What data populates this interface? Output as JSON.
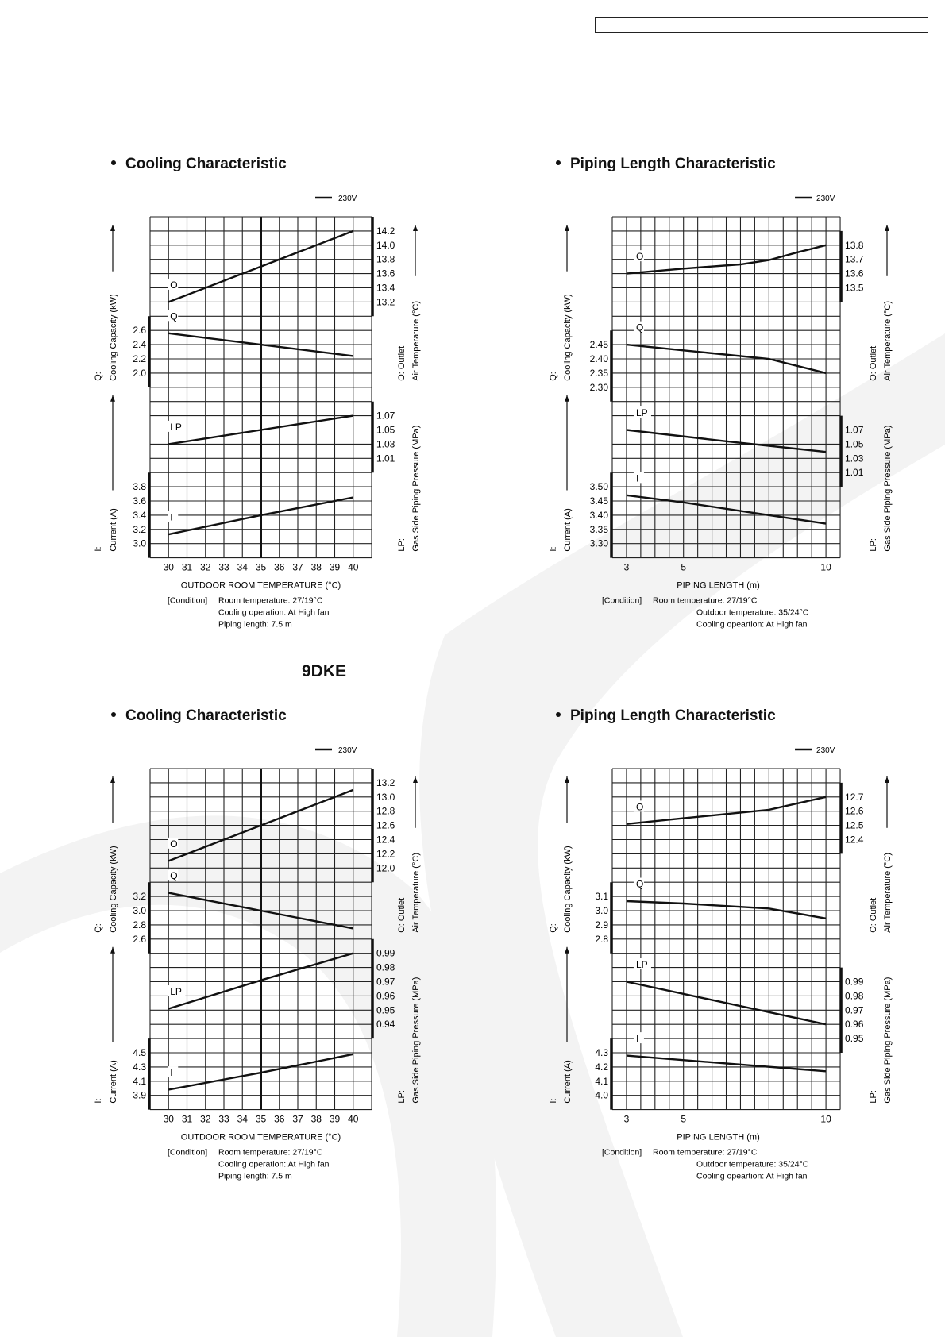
{
  "sections": [
    {
      "title": "Cooling Characteristic"
    },
    {
      "title": "Piping Length Characteristic"
    },
    {
      "title": "Cooling Characteristic"
    },
    {
      "title": "Piping Length Characteristic"
    }
  ],
  "model_label": "9DKE",
  "colors": {
    "ink": "#111111",
    "grid": "#222222",
    "watermark": "#f1f1f1"
  },
  "chart_data": [
    {
      "type": "line",
      "title": "Cooling Characteristic",
      "legend": "230V",
      "legend_position": "top-right",
      "xlabel": "OUTDOOR  ROOM TEMPERATURE (°C)",
      "xlim": [
        29,
        41
      ],
      "xticks": [
        "30",
        "31",
        "32",
        "33",
        "34",
        "35",
        "36",
        "37",
        "38",
        "39",
        "40"
      ],
      "marker_x": 35,
      "grid": true,
      "axis_titles": {
        "left_top": [
          "Q:",
          "Cooling Capacity (kW)"
        ],
        "left_bottom": [
          "I:",
          "Current (A)"
        ],
        "right_top": [
          "O: Outlet",
          "Air Temperature (°C)"
        ],
        "right_bottom": [
          "LP:",
          "Gas Side Piping Pressure (MPa)"
        ]
      },
      "series": [
        {
          "name": "O",
          "axis": "right",
          "ylim": [
            9.6,
            14.4
          ],
          "ticks": [
            "14.2",
            "14.0",
            "13.8",
            "13.6",
            "13.4",
            "13.2"
          ],
          "x": [
            30,
            35,
            40
          ],
          "y": [
            13.2,
            13.7,
            14.2
          ]
        },
        {
          "name": "Q",
          "axis": "left",
          "ylim": [
            -0.6,
            4.2
          ],
          "ticks": [
            "2.6",
            "2.4",
            "2.2",
            "2.0"
          ],
          "x": [
            30,
            35,
            40
          ],
          "y": [
            2.56,
            2.4,
            2.24
          ]
        },
        {
          "name": "LP",
          "axis": "right",
          "ylim": [
            0.87,
            1.35
          ],
          "ticks": [
            "1.07",
            "1.05",
            "1.03",
            "1.01"
          ],
          "x": [
            30,
            35,
            40
          ],
          "y": [
            1.03,
            1.05,
            1.07
          ]
        },
        {
          "name": "I",
          "axis": "left",
          "ylim": [
            2.8,
            7.6
          ],
          "ticks": [
            "3.8",
            "3.6",
            "3.4",
            "3.2",
            "3.0"
          ],
          "x": [
            30,
            35,
            40
          ],
          "y": [
            3.13,
            3.4,
            3.65
          ]
        }
      ],
      "condition_label": "[Condition]",
      "conditions": [
        "Room temperature: 27/19°C",
        "Cooling operation: At High fan",
        "Piping length:  7.5 m"
      ]
    },
    {
      "type": "line",
      "title": "Piping Length Characteristic",
      "legend": "230V",
      "legend_position": "top-right",
      "xlabel": "PIPING LENGTH (m)",
      "xlim": [
        2.5,
        10.5
      ],
      "xticks": [
        "3",
        "5",
        "10"
      ],
      "grid": true,
      "axis_titles": {
        "left_top": [
          "Q:",
          "Cooling Capacity (kW)"
        ],
        "left_bottom": [
          "I:",
          "Current (A)"
        ],
        "right_top": [
          "O: Outlet",
          "Air Temperature (°C)"
        ],
        "right_bottom": [
          "LP:",
          "Gas Side Piping Pressure (MPa)"
        ]
      },
      "series": [
        {
          "name": "O",
          "axis": "right",
          "ylim": [
            11.6,
            14.0
          ],
          "ticks": [
            "13.8",
            "13.7",
            "13.6",
            "13.5"
          ],
          "x": [
            3,
            5,
            7,
            8,
            9,
            10
          ],
          "y": [
            13.6,
            13.635,
            13.665,
            13.695,
            13.75,
            13.8
          ]
        },
        {
          "name": "Q",
          "axis": "left",
          "ylim": [
            1.7,
            2.9
          ],
          "ticks": [
            "2.45",
            "2.40",
            "2.35",
            "2.30"
          ],
          "x": [
            3,
            5,
            8,
            9,
            10
          ],
          "y": [
            2.45,
            2.43,
            2.4,
            2.375,
            2.35
          ]
        },
        {
          "name": "LP",
          "axis": "right",
          "ylim": [
            0.89,
            1.37
          ],
          "ticks": [
            "1.07",
            "1.05",
            "1.03",
            "1.01"
          ],
          "x": [
            3,
            6.5,
            10
          ],
          "y": [
            1.07,
            1.054,
            1.039
          ]
        },
        {
          "name": "I",
          "axis": "left",
          "ylim": [
            3.25,
            4.45
          ],
          "ticks": [
            "3.50",
            "3.45",
            "3.40",
            "3.35",
            "3.30"
          ],
          "x": [
            3,
            5,
            10
          ],
          "y": [
            3.47,
            3.445,
            3.37
          ]
        }
      ],
      "condition_label": "[Condition]",
      "conditions": [
        "Room temperature: 27/19°C",
        "Outdoor temperature: 35/24°C",
        "Cooling opeartion: At High fan"
      ]
    },
    {
      "type": "line",
      "title": "Cooling Characteristic",
      "legend": "230V",
      "legend_position": "top-right",
      "xlabel": "OUTDOOR  ROOM TEMPERATURE (°C)",
      "xlim": [
        29,
        41
      ],
      "xticks": [
        "30",
        "31",
        "32",
        "33",
        "34",
        "35",
        "36",
        "37",
        "38",
        "39",
        "40"
      ],
      "marker_x": 35,
      "grid": true,
      "axis_titles": {
        "left_top": [
          "Q:",
          "Cooling Capacity (kW)"
        ],
        "left_bottom": [
          "I:",
          "Current (A)"
        ],
        "right_top": [
          "O: Outlet",
          "Air Temperature (°C)"
        ],
        "right_bottom": [
          "LP:",
          "Gas Side Piping Pressure (MPa)"
        ]
      },
      "series": [
        {
          "name": "O",
          "axis": "right",
          "ylim": [
            8.6,
            13.4
          ],
          "ticks": [
            "13.2",
            "13.0",
            "12.8",
            "12.6",
            "12.4",
            "12.2",
            "12.0"
          ],
          "x": [
            30,
            35,
            40
          ],
          "y": [
            12.1,
            12.6,
            13.1
          ]
        },
        {
          "name": "Q",
          "axis": "left",
          "ylim": [
            0.2,
            5.0
          ],
          "ticks": [
            "3.2",
            "3.0",
            "2.8",
            "2.6"
          ],
          "x": [
            30,
            35,
            40
          ],
          "y": [
            3.25,
            3.0,
            2.75
          ]
        },
        {
          "name": "LP",
          "axis": "right",
          "ylim": [
            0.88,
            1.12
          ],
          "ticks": [
            "0.99",
            "0.98",
            "0.97",
            "0.96",
            "0.95",
            "0.94"
          ],
          "x": [
            30,
            35,
            40
          ],
          "y": [
            0.951,
            0.971,
            0.99
          ]
        },
        {
          "name": "I",
          "axis": "left",
          "ylim": [
            3.7,
            8.5
          ],
          "ticks": [
            "4.5",
            "4.3",
            "4.1",
            "3.9"
          ],
          "x": [
            30,
            35,
            40
          ],
          "y": [
            3.98,
            4.22,
            4.48
          ]
        }
      ],
      "condition_label": "[Condition]",
      "conditions": [
        "Room temperature: 27/19°C",
        "Cooling operation: At High fan",
        "Piping length:  7.5 m"
      ]
    },
    {
      "type": "line",
      "title": "Piping Length Characteristic",
      "legend": "230V",
      "legend_position": "top-right",
      "xlabel": "PIPING LENGTH (m)",
      "xlim": [
        2.5,
        10.5
      ],
      "xticks": [
        "3",
        "5",
        "10"
      ],
      "grid": true,
      "axis_titles": {
        "left_top": [
          "Q:",
          "Cooling Capacity (kW)"
        ],
        "left_bottom": [
          "I:",
          "Current (A)"
        ],
        "right_top": [
          "O: Outlet",
          "Air Temperature (°C)"
        ],
        "right_bottom": [
          "LP:",
          "Gas Side Piping Pressure (MPa)"
        ]
      },
      "series": [
        {
          "name": "O",
          "axis": "right",
          "ylim": [
            10.5,
            12.9
          ],
          "ticks": [
            "12.7",
            "12.6",
            "12.5",
            "12.4"
          ],
          "x": [
            3,
            5,
            8,
            10
          ],
          "y": [
            12.51,
            12.55,
            12.61,
            12.7
          ]
        },
        {
          "name": "Q",
          "axis": "left",
          "ylim": [
            1.6,
            4.0
          ],
          "ticks": [
            "3.1",
            "3.0",
            "2.9",
            "2.8"
          ],
          "x": [
            3,
            5,
            8,
            10
          ],
          "y": [
            3.067,
            3.05,
            3.015,
            2.945
          ]
        },
        {
          "name": "LP",
          "axis": "right",
          "ylim": [
            0.9,
            1.14
          ],
          "ticks": [
            "0.99",
            "0.98",
            "0.97",
            "0.96",
            "0.95"
          ],
          "x": [
            3,
            10
          ],
          "y": [
            0.99,
            0.96
          ]
        },
        {
          "name": "I",
          "axis": "left",
          "ylim": [
            3.9,
            6.3
          ],
          "ticks": [
            "4.3",
            "4.2",
            "4.1",
            "4.0"
          ],
          "x": [
            3,
            10
          ],
          "y": [
            4.28,
            4.17
          ]
        }
      ],
      "condition_label": "[Condition]",
      "conditions": [
        "Room temperature: 27/19°C",
        "Outdoor temperature: 35/24°C",
        "Cooling opeartion: At High fan"
      ]
    }
  ]
}
